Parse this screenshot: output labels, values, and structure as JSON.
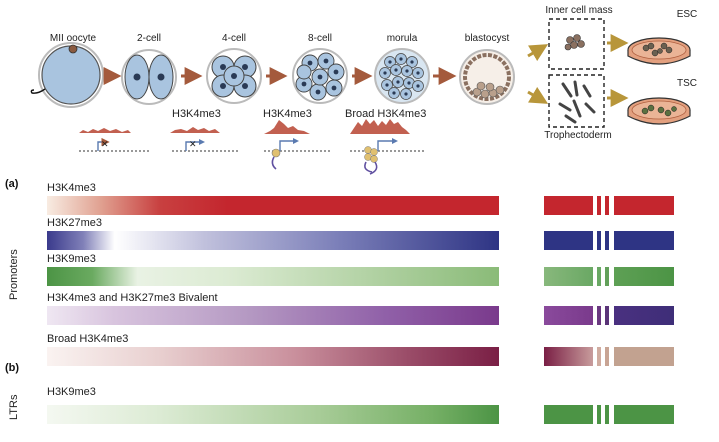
{
  "stages": {
    "mii_oocyte": "MII oocyte",
    "two_cell": "2-cell",
    "four_cell": "4-cell",
    "eight_cell": "8-cell",
    "morula": "morula",
    "blastocyst": "blastocyst",
    "inner_cell_mass": "Inner cell mass",
    "trophectoderm": "Trophectoderm",
    "esc": "ESC",
    "tsc": "TSC"
  },
  "track_labels": {
    "four_cell": "H3K4me3",
    "eight_cell": "H3K4me3",
    "morula": "Broad H3K4me3"
  },
  "panels": {
    "a": "(a)",
    "b": "(b)",
    "promoters": "Promoters",
    "ltrs": "LTRs"
  },
  "rows": [
    {
      "label": "H3K4me3",
      "color": "#c4262e"
    },
    {
      "label": "H3K27me3",
      "color": "#2e3484"
    },
    {
      "label": "H3K9me3",
      "color": "#4c9445"
    },
    {
      "label": "H3K4me3 and H3K27me3 Bivalent",
      "color": "#7a3a8c"
    },
    {
      "label": "Broad H3K4me3",
      "color": "#7a1f45"
    },
    {
      "label": "H3K9me3",
      "color": "#4c9445"
    }
  ],
  "colors": {
    "cell_fill": "#a9c4df",
    "arrow_brown": "#a45a3c",
    "arrow_gold": "#b8963a",
    "dish": "#e3a07f",
    "track_peak": "#c26050"
  }
}
